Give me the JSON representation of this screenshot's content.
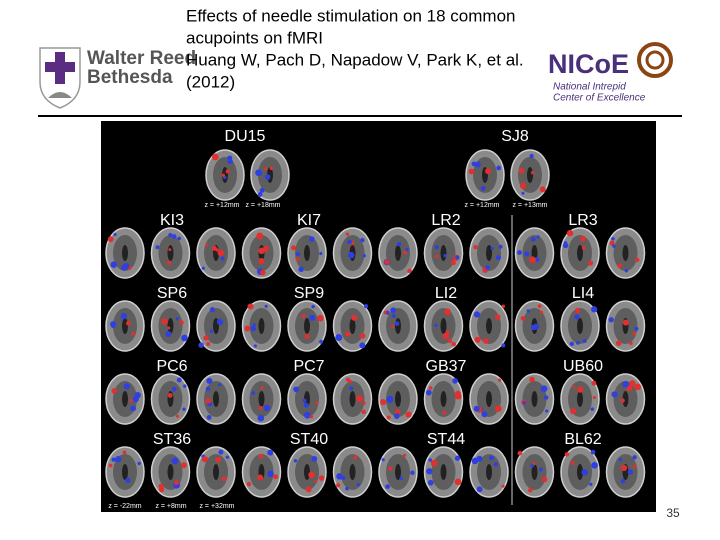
{
  "header": {
    "title_lines": [
      "Effects of needle stimulation on 18 common",
      "acupoints on fMRI",
      "Huang W, Pach D, Napadow V, Park K, et al.",
      "(2012)"
    ],
    "left_logo": {
      "lines": [
        "Walter Reed",
        "Bethesda"
      ]
    },
    "right_logo": {
      "name": "NICoE",
      "lines": [
        "National Intrepid",
        "Center of Excellence"
      ]
    }
  },
  "figure": {
    "panels": [
      "DU15",
      "SJ8",
      "KI3",
      "KI7",
      "LR2",
      "LR3",
      "SP6",
      "SP9",
      "LI2",
      "LI4",
      "PC6",
      "PC7",
      "GB37",
      "UB60",
      "ST36",
      "ST40",
      "ST44",
      "BL62"
    ],
    "z_labels": [
      "z = +12mm",
      "z = +18mm",
      "z = +12mm",
      "z = +13mm",
      "z = -22mm",
      "z = +8mm",
      "z = +32mm"
    ]
  },
  "page_number": "35"
}
